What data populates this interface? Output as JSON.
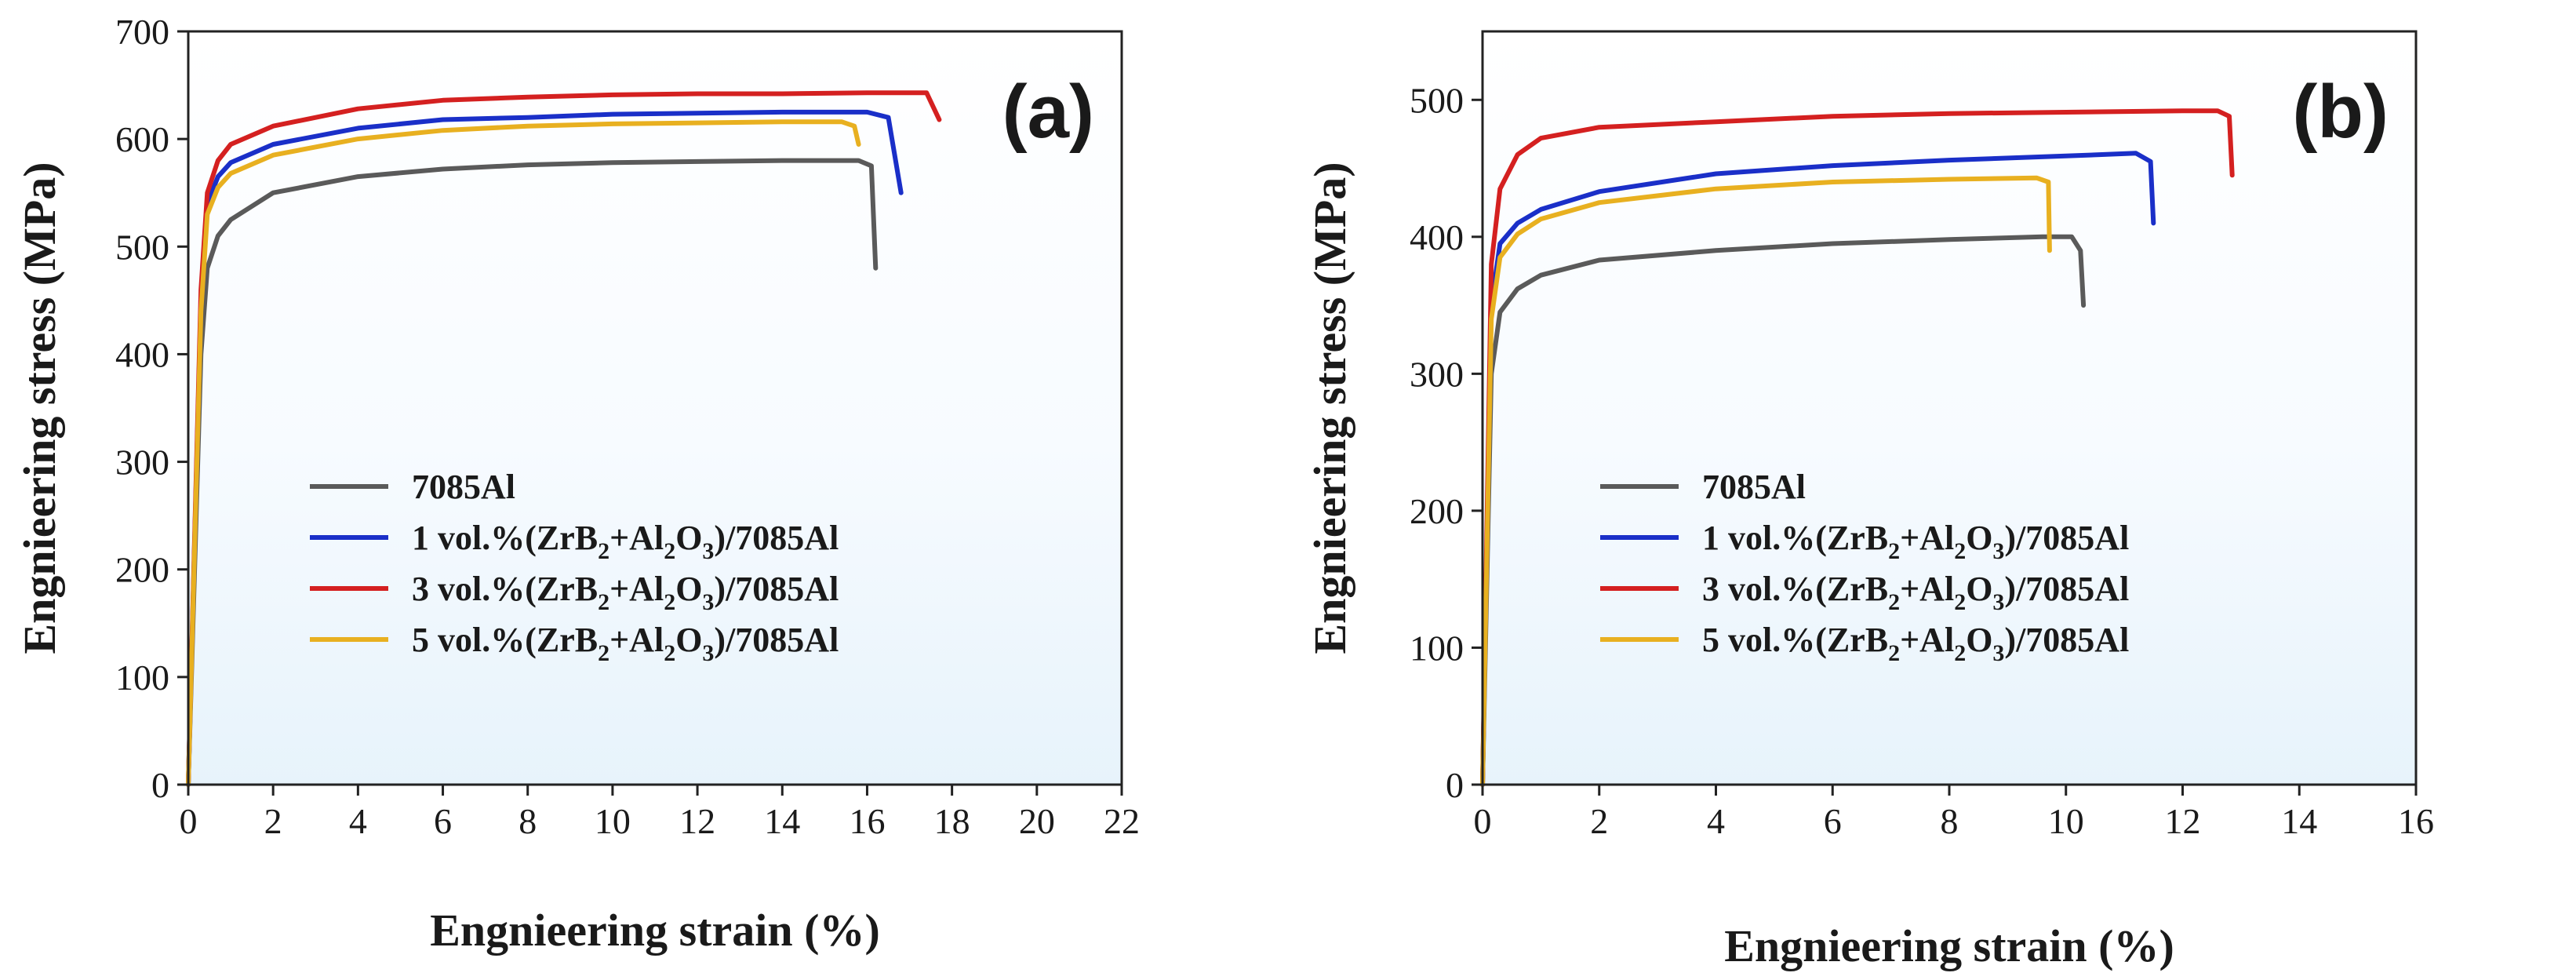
{
  "chart_data": [
    {
      "type": "line",
      "panel_label": "(a)",
      "xlabel": "Engnieering strain (%)",
      "ylabel": "Engnieering stress (MPa)",
      "xlim": [
        0,
        22
      ],
      "ylim": [
        0,
        700
      ],
      "xticks": [
        0,
        2,
        4,
        6,
        8,
        10,
        12,
        14,
        16,
        18,
        20,
        22
      ],
      "yticks": [
        0,
        100,
        200,
        300,
        400,
        500,
        600,
        700
      ],
      "legend_position": "lower-center",
      "series": [
        {
          "name": "7085Al",
          "color": "#5a5a5a",
          "x": [
            0,
            0.3,
            0.45,
            0.7,
            1.0,
            2.0,
            4.0,
            6.0,
            8.0,
            10.0,
            12.0,
            14.0,
            15.8,
            16.1,
            16.2
          ],
          "y": [
            0,
            400,
            480,
            510,
            525,
            550,
            565,
            572,
            576,
            578,
            579,
            580,
            580,
            575,
            480
          ]
        },
        {
          "name": "1 vol.%(ZrB2+Al2O3)/7085Al",
          "color": "#1a2fc8",
          "x": [
            0,
            0.3,
            0.45,
            0.7,
            1.0,
            2.0,
            4.0,
            6.0,
            8.0,
            10.0,
            12.0,
            14.0,
            16.0,
            16.5,
            16.8
          ],
          "y": [
            0,
            450,
            540,
            565,
            578,
            595,
            610,
            618,
            620,
            623,
            624,
            625,
            625,
            620,
            550
          ]
        },
        {
          "name": "3 vol.%(ZrB2+Al2O3)/7085Al",
          "color": "#d42020",
          "x": [
            0,
            0.3,
            0.45,
            0.7,
            1.0,
            2.0,
            4.0,
            6.0,
            8.0,
            10.0,
            12.0,
            14.0,
            16.0,
            17.4,
            17.7
          ],
          "y": [
            0,
            460,
            550,
            580,
            595,
            612,
            628,
            636,
            639,
            641,
            642,
            642,
            643,
            643,
            618
          ]
        },
        {
          "name": "5 vol.%(ZrB2+Al2O3)/7085Al",
          "color": "#e8b020",
          "x": [
            0,
            0.3,
            0.45,
            0.7,
            1.0,
            2.0,
            4.0,
            6.0,
            8.0,
            10.0,
            12.0,
            14.0,
            15.4,
            15.7,
            15.8
          ],
          "y": [
            0,
            440,
            530,
            555,
            568,
            585,
            600,
            608,
            612,
            614,
            615,
            616,
            616,
            612,
            595
          ]
        }
      ]
    },
    {
      "type": "line",
      "panel_label": "(b)",
      "xlabel": "Engnieering strain (%)",
      "ylabel": "Engnieering stress (MPa)",
      "xlim": [
        0,
        16
      ],
      "ylim": [
        0,
        550
      ],
      "xticks": [
        0,
        2,
        4,
        6,
        8,
        10,
        12,
        14,
        16
      ],
      "yticks": [
        0,
        100,
        200,
        300,
        400,
        500
      ],
      "legend_position": "lower-center",
      "series": [
        {
          "name": "7085Al",
          "color": "#5a5a5a",
          "x": [
            0,
            0.15,
            0.3,
            0.6,
            1.0,
            2.0,
            4.0,
            6.0,
            8.0,
            9.6,
            10.1,
            10.25,
            10.3
          ],
          "y": [
            0,
            300,
            345,
            362,
            372,
            383,
            390,
            395,
            398,
            400,
            400,
            390,
            350
          ]
        },
        {
          "name": "1 vol.%(ZrB2+Al2O3)/7085Al",
          "color": "#1a2fc8",
          "x": [
            0,
            0.15,
            0.3,
            0.6,
            1.0,
            2.0,
            4.0,
            6.0,
            8.0,
            10.0,
            11.2,
            11.45,
            11.5
          ],
          "y": [
            0,
            350,
            395,
            410,
            420,
            433,
            446,
            452,
            456,
            459,
            461,
            455,
            410
          ]
        },
        {
          "name": "3 vol.%(ZrB2+Al2O3)/7085Al",
          "color": "#d42020",
          "x": [
            0,
            0.15,
            0.3,
            0.6,
            1.0,
            2.0,
            4.0,
            6.0,
            8.0,
            10.0,
            12.0,
            12.6,
            12.8,
            12.85
          ],
          "y": [
            0,
            380,
            435,
            460,
            472,
            480,
            484,
            488,
            490,
            491,
            492,
            492,
            488,
            445
          ]
        },
        {
          "name": "5 vol.%(ZrB2+Al2O3)/7085Al",
          "color": "#e8b020",
          "x": [
            0,
            0.15,
            0.3,
            0.6,
            1.0,
            2.0,
            4.0,
            6.0,
            8.0,
            9.5,
            9.7,
            9.72
          ],
          "y": [
            0,
            340,
            385,
            402,
            413,
            425,
            435,
            440,
            442,
            443,
            440,
            390
          ]
        }
      ]
    }
  ],
  "legend_labels": {
    "s0": "7085Al",
    "s_prefix_1": "1 vol.%(ZrB",
    "s_prefix_3": "3 vol.%(ZrB",
    "s_prefix_5": "5 vol.%(ZrB",
    "sub2": "2",
    "sub3": "3",
    "mid": "+Al",
    "close": ")",
    "suffix": "/7085Al"
  }
}
